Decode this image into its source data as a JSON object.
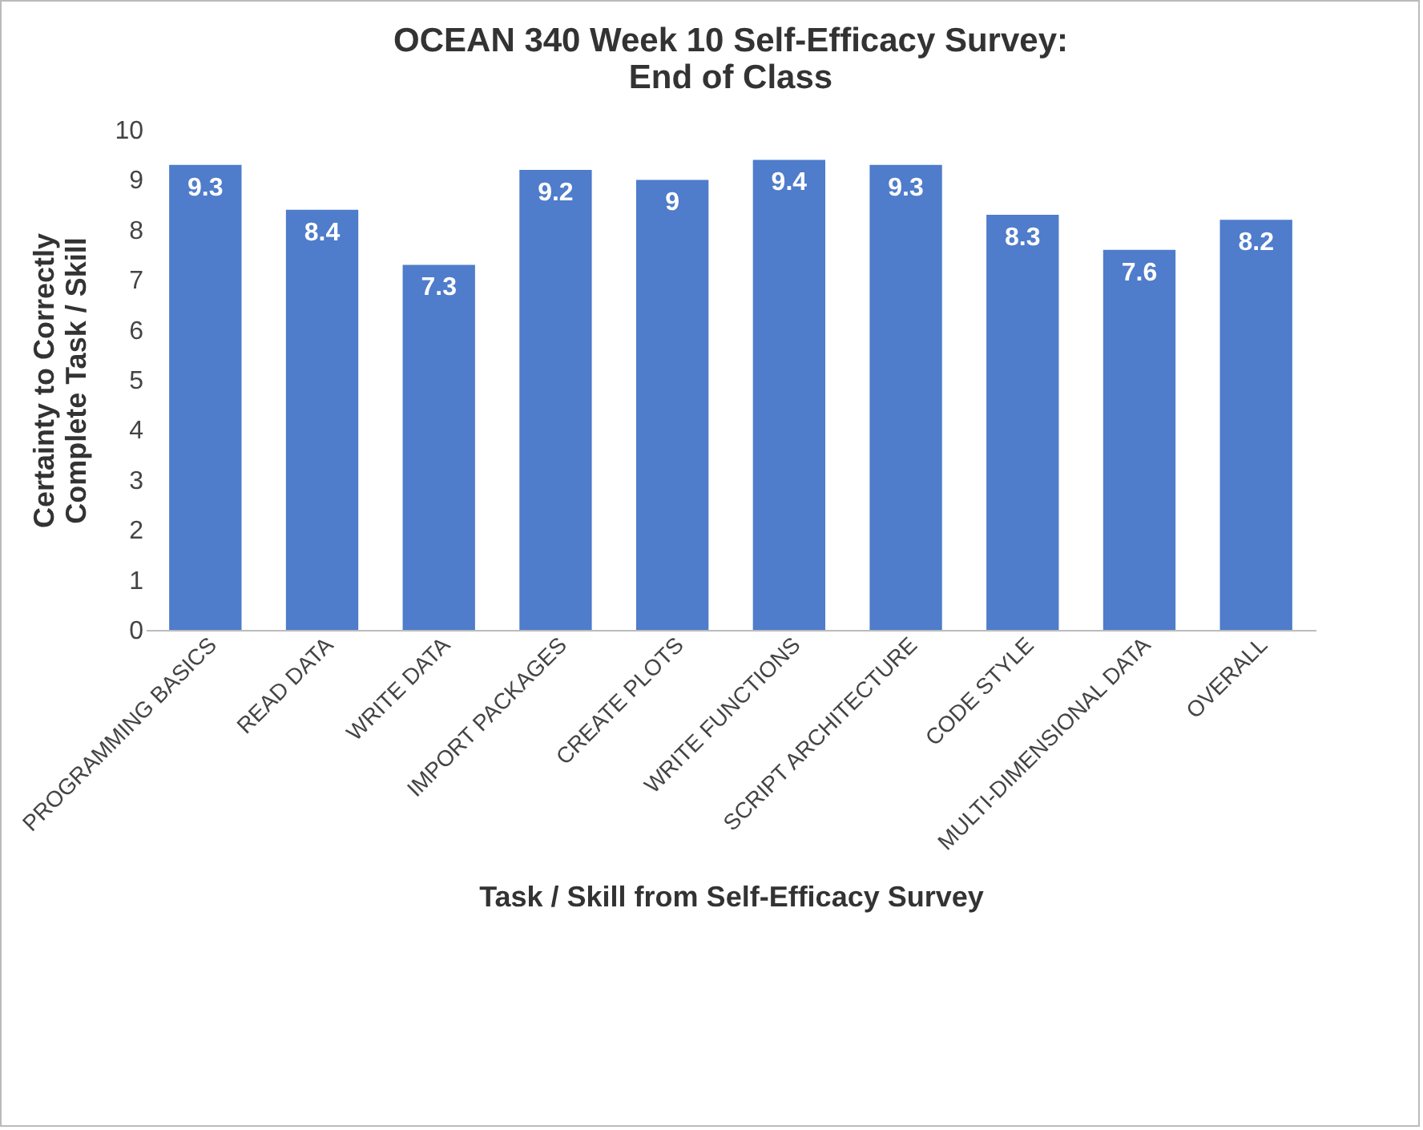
{
  "chart_data": {
    "type": "bar",
    "title": "OCEAN 340 Week 10 Self-Efficacy Survey:\nEnd of Class",
    "xlabel": "Task / Skill from Self-Efficacy Survey",
    "ylabel": "Certainty to Correctly\nComplete Task / Skill",
    "categories": [
      "PROGRAMMING BASICS",
      "READ DATA",
      "WRITE DATA",
      "IMPORT PACKAGES",
      "CREATE PLOTS",
      "WRITE FUNCTIONS",
      "SCRIPT ARCHITECTURE",
      "CODE STYLE",
      "MULTI-DIMENSIONAL DATA",
      "OVERALL"
    ],
    "values": [
      9.3,
      8.4,
      7.3,
      9.2,
      9,
      9.4,
      9.3,
      8.3,
      7.6,
      8.2
    ],
    "color": "#4f7ccb",
    "ylim": [
      0,
      10
    ],
    "yticks": [
      0,
      1,
      2,
      3,
      4,
      5,
      6,
      7,
      8,
      9,
      10
    ],
    "grid": false,
    "data_labels": true
  }
}
